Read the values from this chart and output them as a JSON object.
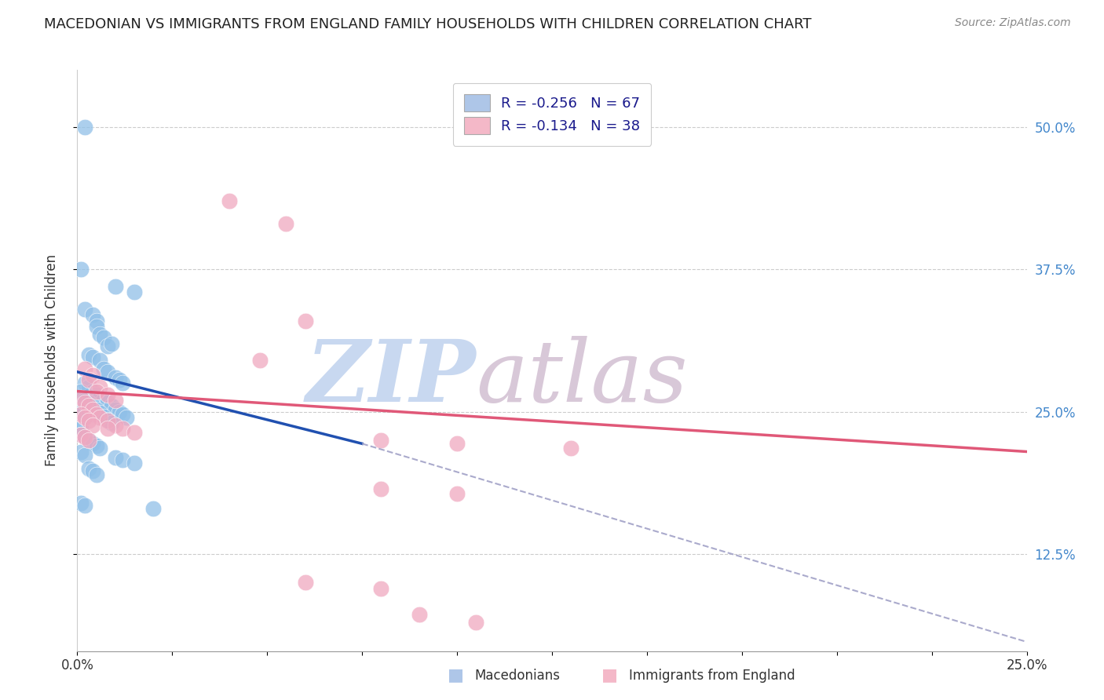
{
  "title": "MACEDONIAN VS IMMIGRANTS FROM ENGLAND FAMILY HOUSEHOLDS WITH CHILDREN CORRELATION CHART",
  "source": "Source: ZipAtlas.com",
  "ylabel": "Family Households with Children",
  "xlabel_bottom_left": "Macedonians",
  "xlabel_bottom_right": "Immigrants from England",
  "xlim": [
    0.0,
    0.25
  ],
  "ylim": [
    0.04,
    0.55
  ],
  "yticks": [
    0.125,
    0.25,
    0.375,
    0.5
  ],
  "ytick_labels": [
    "12.5%",
    "25.0%",
    "37.5%",
    "50.0%"
  ],
  "xticks": [
    0.0,
    0.025,
    0.05,
    0.075,
    0.1,
    0.125,
    0.15,
    0.175,
    0.2,
    0.225,
    0.25
  ],
  "xtick_labels_show": [
    "0.0%",
    "",
    "",
    "",
    "",
    "",
    "",
    "",
    "",
    "",
    "25.0%"
  ],
  "grid_color": "#cccccc",
  "background_color": "#ffffff",
  "legend": {
    "blue_label": "R = -0.256   N = 67",
    "pink_label": "R = -0.134   N = 38",
    "blue_color": "#aec6e8",
    "pink_color": "#f4b8c8"
  },
  "blue_dots": [
    [
      0.002,
      0.5
    ],
    [
      0.001,
      0.375
    ],
    [
      0.01,
      0.36
    ],
    [
      0.015,
      0.355
    ],
    [
      0.002,
      0.34
    ],
    [
      0.004,
      0.335
    ],
    [
      0.005,
      0.33
    ],
    [
      0.005,
      0.325
    ],
    [
      0.006,
      0.318
    ],
    [
      0.007,
      0.315
    ],
    [
      0.008,
      0.308
    ],
    [
      0.009,
      0.31
    ],
    [
      0.003,
      0.3
    ],
    [
      0.004,
      0.298
    ],
    [
      0.006,
      0.295
    ],
    [
      0.007,
      0.288
    ],
    [
      0.008,
      0.285
    ],
    [
      0.01,
      0.28
    ],
    [
      0.011,
      0.278
    ],
    [
      0.012,
      0.275
    ],
    [
      0.002,
      0.275
    ],
    [
      0.003,
      0.272
    ],
    [
      0.004,
      0.268
    ],
    [
      0.005,
      0.265
    ],
    [
      0.006,
      0.262
    ],
    [
      0.007,
      0.26
    ],
    [
      0.008,
      0.258
    ],
    [
      0.009,
      0.255
    ],
    [
      0.01,
      0.252
    ],
    [
      0.011,
      0.25
    ],
    [
      0.012,
      0.248
    ],
    [
      0.013,
      0.245
    ],
    [
      0.001,
      0.268
    ],
    [
      0.001,
      0.262
    ],
    [
      0.001,
      0.255
    ],
    [
      0.001,
      0.248
    ],
    [
      0.001,
      0.242
    ],
    [
      0.001,
      0.235
    ],
    [
      0.002,
      0.26
    ],
    [
      0.002,
      0.253
    ],
    [
      0.002,
      0.246
    ],
    [
      0.003,
      0.258
    ],
    [
      0.003,
      0.25
    ],
    [
      0.004,
      0.255
    ],
    [
      0.004,
      0.248
    ],
    [
      0.005,
      0.252
    ],
    [
      0.006,
      0.249
    ],
    [
      0.007,
      0.246
    ],
    [
      0.008,
      0.243
    ],
    [
      0.009,
      0.24
    ],
    [
      0.001,
      0.23
    ],
    [
      0.002,
      0.228
    ],
    [
      0.003,
      0.225
    ],
    [
      0.004,
      0.222
    ],
    [
      0.005,
      0.22
    ],
    [
      0.006,
      0.218
    ],
    [
      0.001,
      0.215
    ],
    [
      0.002,
      0.212
    ],
    [
      0.01,
      0.21
    ],
    [
      0.012,
      0.208
    ],
    [
      0.015,
      0.205
    ],
    [
      0.003,
      0.2
    ],
    [
      0.004,
      0.198
    ],
    [
      0.005,
      0.195
    ],
    [
      0.001,
      0.17
    ],
    [
      0.002,
      0.168
    ],
    [
      0.02,
      0.165
    ]
  ],
  "pink_dots": [
    [
      0.04,
      0.435
    ],
    [
      0.055,
      0.415
    ],
    [
      0.06,
      0.33
    ],
    [
      0.048,
      0.295
    ],
    [
      0.002,
      0.288
    ],
    [
      0.004,
      0.282
    ],
    [
      0.003,
      0.278
    ],
    [
      0.006,
      0.272
    ],
    [
      0.005,
      0.268
    ],
    [
      0.008,
      0.265
    ],
    [
      0.01,
      0.26
    ],
    [
      0.001,
      0.262
    ],
    [
      0.002,
      0.258
    ],
    [
      0.003,
      0.255
    ],
    [
      0.004,
      0.252
    ],
    [
      0.005,
      0.248
    ],
    [
      0.006,
      0.245
    ],
    [
      0.008,
      0.242
    ],
    [
      0.01,
      0.238
    ],
    [
      0.012,
      0.235
    ],
    [
      0.015,
      0.232
    ],
    [
      0.001,
      0.248
    ],
    [
      0.002,
      0.245
    ],
    [
      0.003,
      0.242
    ],
    [
      0.004,
      0.238
    ],
    [
      0.008,
      0.235
    ],
    [
      0.001,
      0.23
    ],
    [
      0.002,
      0.228
    ],
    [
      0.003,
      0.225
    ],
    [
      0.08,
      0.225
    ],
    [
      0.1,
      0.222
    ],
    [
      0.13,
      0.218
    ],
    [
      0.08,
      0.182
    ],
    [
      0.1,
      0.178
    ],
    [
      0.06,
      0.1
    ],
    [
      0.08,
      0.095
    ],
    [
      0.09,
      0.072
    ],
    [
      0.105,
      0.065
    ]
  ],
  "blue_line": {
    "x0": 0.0,
    "y0": 0.285,
    "x1": 0.075,
    "y1": 0.222
  },
  "pink_line": {
    "x0": 0.0,
    "y0": 0.268,
    "x1": 0.25,
    "y1": 0.215
  },
  "dashed_line": {
    "x0": 0.075,
    "y0": 0.222,
    "x1": 0.25,
    "y1": 0.048
  },
  "blue_dot_color": "#90C0E8",
  "pink_dot_color": "#F0A8C0",
  "blue_line_color": "#2050B0",
  "pink_line_color": "#E05878",
  "dashed_line_color": "#AAAACC",
  "right_axis_tick_color": "#4488CC",
  "title_fontsize": 13,
  "source_fontsize": 10,
  "watermark_zip_color": "#C8D8F0",
  "watermark_atlas_color": "#D8C8D8"
}
